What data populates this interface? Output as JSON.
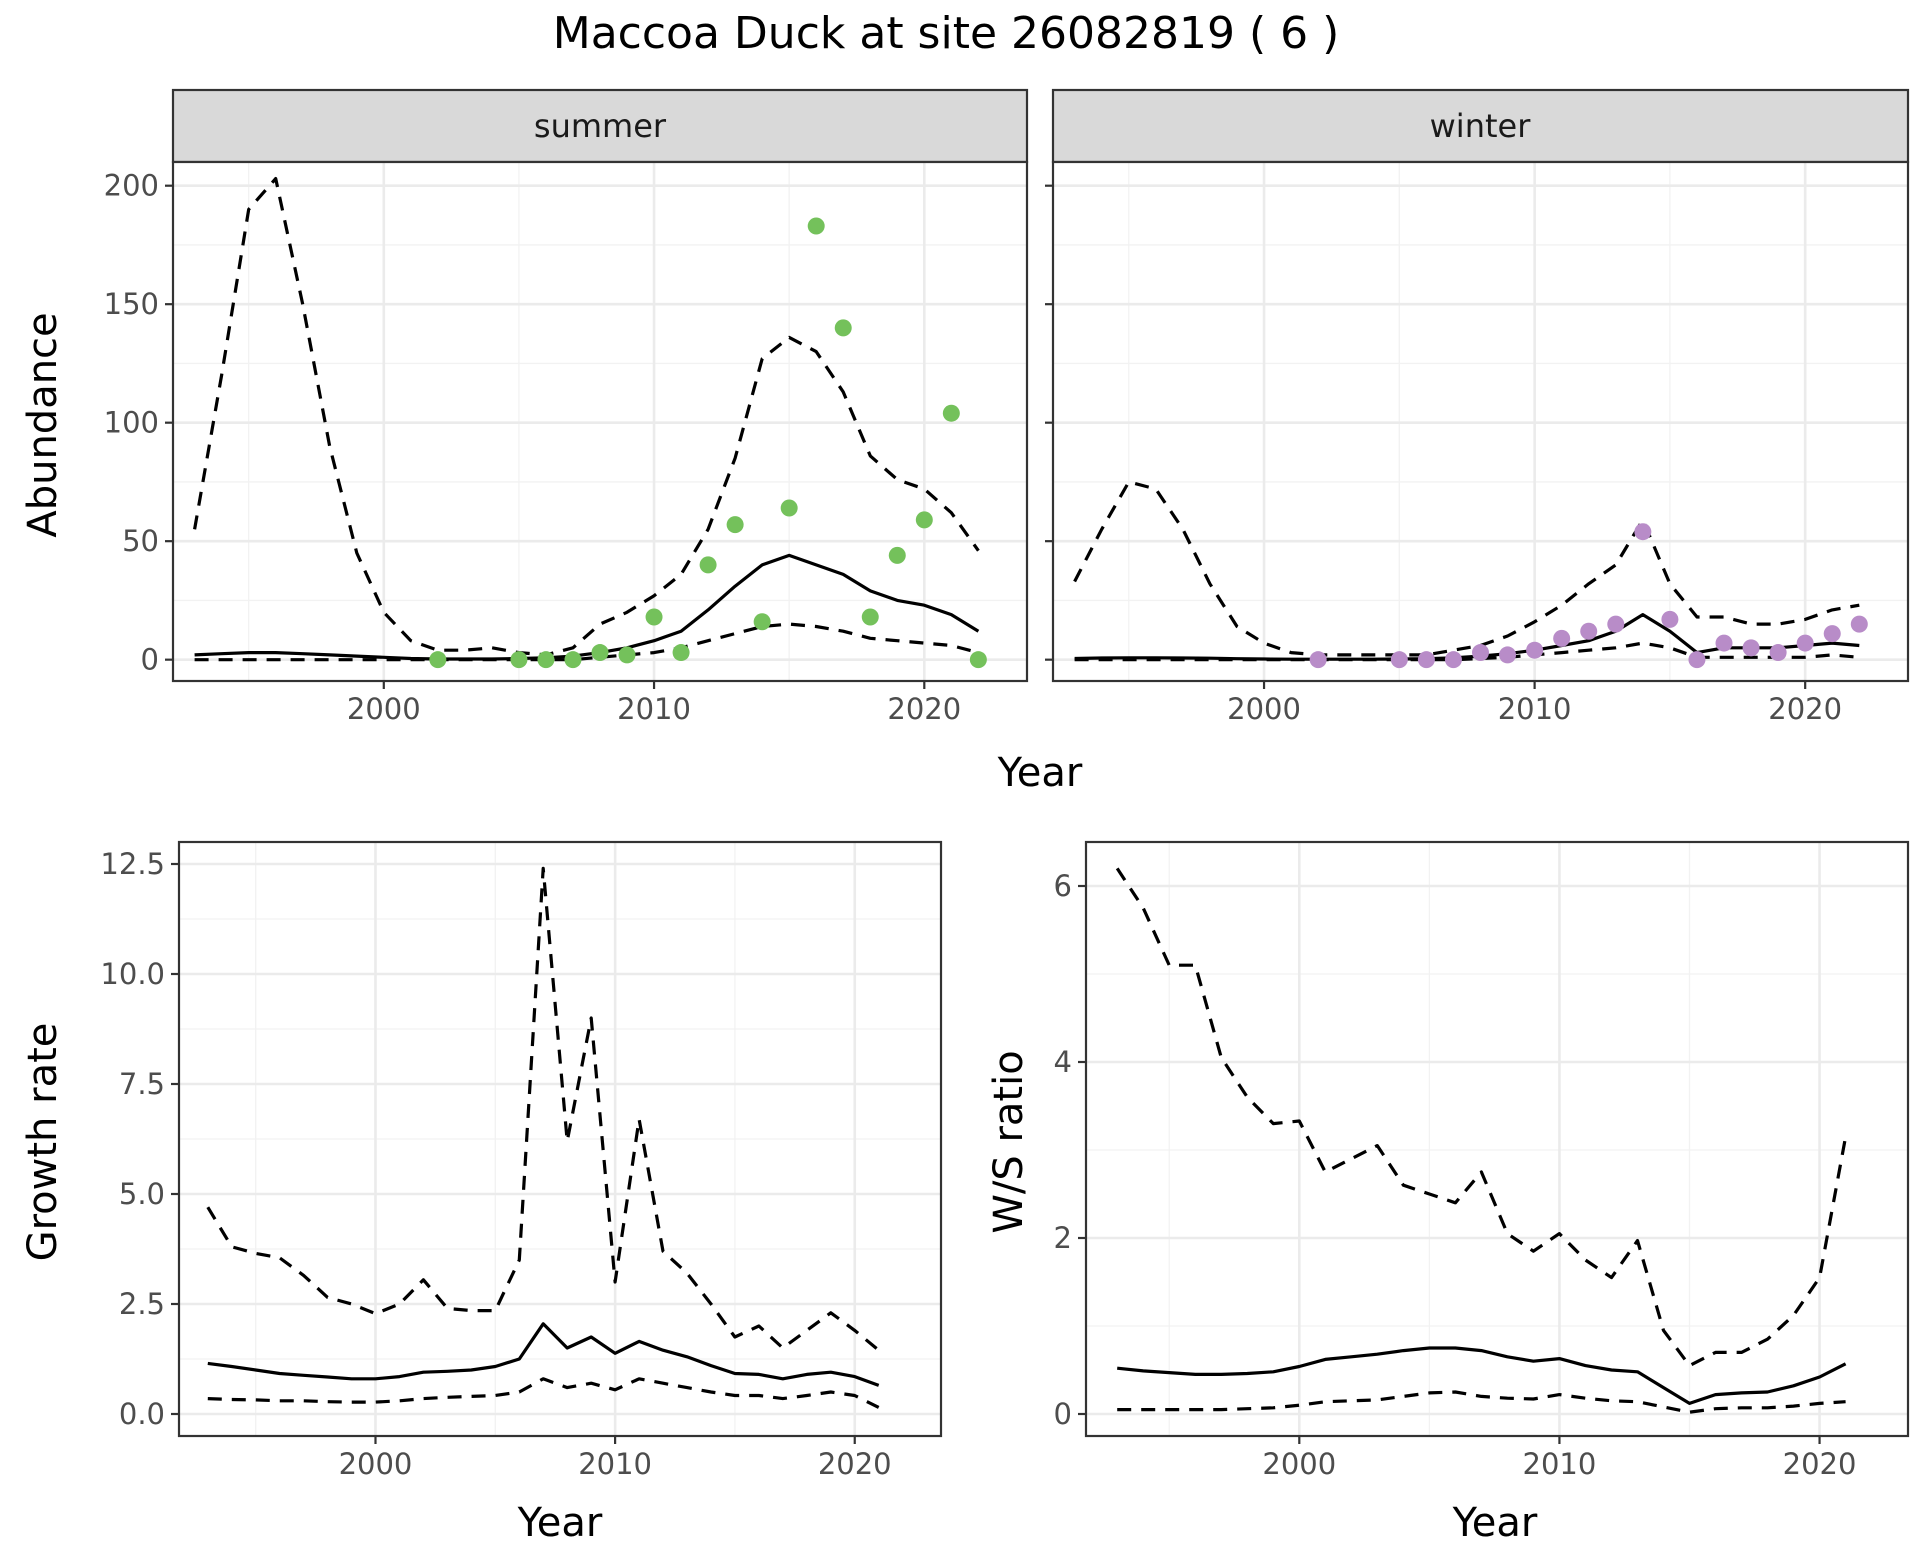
{
  "figure_title": "Maccoa Duck at site 26082819 ( 6 )",
  "colors": {
    "summer_points": "#74c15b",
    "winter_points": "#b88cc8",
    "lines": "#000000"
  },
  "chart_data": [
    {
      "id": "abundance_summer",
      "type": "line",
      "strip": "summer",
      "xlabel": "",
      "ylabel": "Abundance",
      "xlim": [
        1992.2,
        2023.8
      ],
      "ylim": [
        -9,
        210
      ],
      "xticks": [
        2000,
        2010,
        2020
      ],
      "yticks": [
        0,
        50,
        100,
        150,
        200
      ],
      "x": [
        1993,
        1994,
        1995,
        1996,
        1997,
        1998,
        1999,
        2000,
        2001,
        2002,
        2003,
        2004,
        2005,
        2006,
        2007,
        2008,
        2009,
        2010,
        2011,
        2012,
        2013,
        2014,
        2015,
        2016,
        2017,
        2018,
        2019,
        2020,
        2021,
        2022
      ],
      "series": [
        {
          "role": "mean",
          "values": [
            2,
            2.5,
            3,
            3,
            2.5,
            2,
            1.5,
            1,
            0.5,
            0.3,
            0.3,
            0.3,
            0.5,
            0.8,
            1.5,
            3,
            5,
            8,
            12,
            21,
            31,
            40,
            44,
            40,
            36,
            29,
            25,
            23,
            19,
            12
          ]
        },
        {
          "role": "upper",
          "values": [
            55,
            120,
            190,
            203,
            150,
            90,
            45,
            20,
            8,
            4,
            4,
            5,
            3,
            2,
            5,
            15,
            20,
            27,
            36,
            55,
            85,
            127,
            136,
            130,
            113,
            86,
            76,
            72,
            62,
            46
          ]
        },
        {
          "role": "lower",
          "values": [
            0,
            0,
            0,
            0,
            0,
            0,
            0,
            0,
            0,
            0,
            0,
            0,
            0,
            0,
            0,
            1,
            2,
            3,
            5,
            8,
            11,
            14,
            15,
            14,
            12,
            9,
            8,
            7,
            6,
            3
          ]
        }
      ],
      "points": {
        "x": [
          2002,
          2005,
          2006,
          2007,
          2008,
          2009,
          2010,
          2011,
          2012,
          2013,
          2014,
          2015,
          2016,
          2017,
          2018,
          2019,
          2020,
          2021,
          2022
        ],
        "y": [
          0,
          0,
          0,
          0,
          3,
          2,
          18,
          3,
          40,
          57,
          16,
          64,
          183,
          140,
          18,
          44,
          59,
          104,
          0
        ]
      }
    },
    {
      "id": "abundance_winter",
      "type": "line",
      "strip": "winter",
      "xlabel": "",
      "ylabel": "",
      "xlim": [
        1992.2,
        2023.8
      ],
      "ylim": [
        -9,
        210
      ],
      "xticks": [
        2000,
        2010,
        2020
      ],
      "yticks": [],
      "x": [
        1993,
        1994,
        1995,
        1996,
        1997,
        1998,
        1999,
        2000,
        2001,
        2002,
        2003,
        2004,
        2005,
        2006,
        2007,
        2008,
        2009,
        2010,
        2011,
        2012,
        2013,
        2014,
        2015,
        2016,
        2017,
        2018,
        2019,
        2020,
        2021,
        2022
      ],
      "series": [
        {
          "role": "mean",
          "values": [
            0.5,
            0.7,
            0.8,
            0.8,
            0.7,
            0.6,
            0.4,
            0.3,
            0.2,
            0.2,
            0.2,
            0.2,
            0.3,
            0.4,
            0.8,
            1.5,
            2.5,
            4,
            6,
            8,
            12,
            19,
            12,
            3,
            5,
            5,
            5,
            6,
            7,
            6
          ]
        },
        {
          "role": "upper",
          "values": [
            33,
            55,
            75,
            72,
            55,
            32,
            14,
            7,
            3,
            2,
            2,
            2,
            2,
            2,
            4,
            6,
            10,
            16,
            23,
            32,
            40,
            59,
            32,
            18,
            18,
            15,
            15,
            17,
            21,
            23
          ]
        },
        {
          "role": "lower",
          "values": [
            0,
            0,
            0,
            0,
            0,
            0,
            0,
            0,
            0,
            0,
            0,
            0,
            0,
            0,
            0,
            0.5,
            1,
            2,
            3,
            4,
            5,
            7,
            5,
            1,
            1,
            1,
            1,
            1,
            2,
            1
          ]
        }
      ],
      "points": {
        "x": [
          2002,
          2005,
          2006,
          2007,
          2008,
          2009,
          2010,
          2011,
          2012,
          2013,
          2014,
          2015,
          2016,
          2017,
          2018,
          2019,
          2020,
          2021,
          2022
        ],
        "y": [
          0,
          0,
          0,
          0,
          3,
          2,
          4,
          9,
          12,
          15,
          54,
          17,
          0,
          7,
          5,
          3,
          7,
          11,
          15
        ]
      }
    },
    {
      "id": "growth_rate",
      "type": "line",
      "xlabel": "Year",
      "ylabel": "Growth rate",
      "xlim": [
        1991.8,
        2023.6
      ],
      "ylim": [
        -0.5,
        13
      ],
      "xticks": [
        2000,
        2010,
        2020
      ],
      "yticks": [
        0.0,
        2.5,
        5.0,
        7.5,
        10.0,
        12.5
      ],
      "ytick_labels": [
        "0.0",
        "2.5",
        "5.0",
        "7.5",
        "10.0",
        "12.5"
      ],
      "x": [
        1993,
        1994,
        1995,
        1996,
        1997,
        1998,
        1999,
        2000,
        2001,
        2002,
        2003,
        2004,
        2005,
        2006,
        2007,
        2008,
        2009,
        2010,
        2011,
        2012,
        2013,
        2014,
        2015,
        2016,
        2017,
        2018,
        2019,
        2020,
        2021
      ],
      "series": [
        {
          "role": "mean",
          "values": [
            1.15,
            1.08,
            1.0,
            0.92,
            0.88,
            0.84,
            0.8,
            0.8,
            0.85,
            0.95,
            0.97,
            1.0,
            1.08,
            1.25,
            2.05,
            1.5,
            1.75,
            1.38,
            1.65,
            1.45,
            1.3,
            1.1,
            0.92,
            0.9,
            0.8,
            0.9,
            0.95,
            0.85,
            0.65
          ]
        },
        {
          "role": "upper",
          "values": [
            4.7,
            3.8,
            3.65,
            3.55,
            3.15,
            2.65,
            2.5,
            2.28,
            2.5,
            3.05,
            2.4,
            2.35,
            2.35,
            3.5,
            12.4,
            6.2,
            9.0,
            3.0,
            6.7,
            3.7,
            3.2,
            2.5,
            1.75,
            2.0,
            1.5,
            1.9,
            2.3,
            1.9,
            1.45
          ]
        },
        {
          "role": "lower",
          "values": [
            0.35,
            0.33,
            0.32,
            0.3,
            0.3,
            0.28,
            0.27,
            0.27,
            0.3,
            0.35,
            0.38,
            0.4,
            0.42,
            0.5,
            0.8,
            0.6,
            0.7,
            0.55,
            0.8,
            0.7,
            0.6,
            0.5,
            0.42,
            0.42,
            0.35,
            0.42,
            0.5,
            0.42,
            0.15
          ]
        }
      ]
    },
    {
      "id": "ws_ratio",
      "type": "line",
      "xlabel": "Year",
      "ylabel": "W/S ratio",
      "xlim": [
        1991.8,
        2023.4
      ],
      "ylim": [
        -0.25,
        6.5
      ],
      "xticks": [
        2000,
        2010,
        2020
      ],
      "yticks": [
        0,
        2,
        4,
        6
      ],
      "x": [
        1993,
        1994,
        1995,
        1996,
        1997,
        1998,
        1999,
        2000,
        2001,
        2002,
        2003,
        2004,
        2005,
        2006,
        2007,
        2008,
        2009,
        2010,
        2011,
        2012,
        2013,
        2014,
        2015,
        2016,
        2017,
        2018,
        2019,
        2020,
        2021
      ],
      "series": [
        {
          "role": "mean",
          "values": [
            0.52,
            0.49,
            0.47,
            0.45,
            0.45,
            0.46,
            0.48,
            0.54,
            0.62,
            0.65,
            0.68,
            0.72,
            0.75,
            0.75,
            0.72,
            0.65,
            0.6,
            0.63,
            0.55,
            0.5,
            0.48,
            0.3,
            0.12,
            0.22,
            0.24,
            0.25,
            0.32,
            0.42,
            0.57
          ]
        },
        {
          "role": "upper",
          "values": [
            6.2,
            5.75,
            5.1,
            5.1,
            4.05,
            3.6,
            3.3,
            3.33,
            2.75,
            2.9,
            3.05,
            2.6,
            2.5,
            2.4,
            2.75,
            2.05,
            1.85,
            2.05,
            1.75,
            1.55,
            1.97,
            0.95,
            0.55,
            0.7,
            0.7,
            0.85,
            1.12,
            1.55,
            3.15
          ]
        },
        {
          "role": "lower",
          "values": [
            0.05,
            0.05,
            0.05,
            0.05,
            0.05,
            0.06,
            0.07,
            0.1,
            0.14,
            0.15,
            0.16,
            0.2,
            0.24,
            0.25,
            0.2,
            0.18,
            0.17,
            0.22,
            0.18,
            0.15,
            0.14,
            0.08,
            0.02,
            0.06,
            0.07,
            0.07,
            0.09,
            0.12,
            0.14
          ]
        }
      ]
    }
  ]
}
